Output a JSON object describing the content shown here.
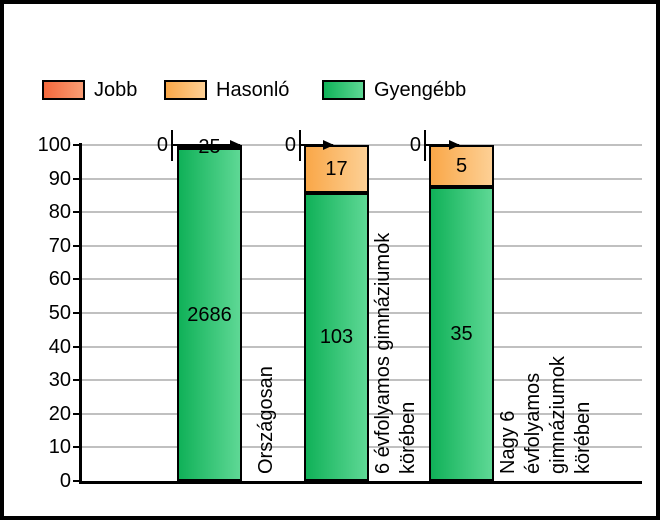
{
  "chart_data": {
    "type": "bar",
    "stacked": true,
    "title": "",
    "categories": [
      "Országosan",
      "6 évfolyamos gimnáziumok\nkörében",
      "Nagy 6 évfolyamos gimnáziumok\nkörében"
    ],
    "series": [
      {
        "name": "Jobb",
        "values": [
          0,
          0,
          0
        ],
        "color_start": "#f2683c",
        "color_end": "#fa9d74"
      },
      {
        "name": "Hasonló",
        "values": [
          25,
          17,
          5
        ],
        "color_start": "#f9a748",
        "color_end": "#fdd095"
      },
      {
        "name": "Gyengébb",
        "values": [
          2686,
          103,
          35
        ],
        "color_start": "#10b158",
        "color_end": "#5ed895"
      }
    ],
    "value_axis": "percentage_of_category_total",
    "ylim": [
      0,
      100
    ],
    "yticks": [
      0,
      10,
      20,
      30,
      40,
      50,
      60,
      70,
      80,
      90,
      100
    ],
    "grid": true,
    "legend_position": "top",
    "colors": {
      "gridline": "#c0c0c0",
      "axis": "#000000",
      "text": "#000000",
      "background": "#ffffff"
    }
  }
}
